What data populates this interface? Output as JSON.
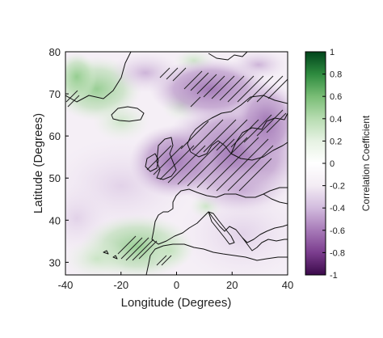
{
  "map": {
    "xlabel": "Longitude (Degrees)",
    "ylabel": "Latitude (Degrees)",
    "xlim": [
      -40,
      40
    ],
    "ylim": [
      27,
      80
    ],
    "xticks": [
      "-40",
      "-20",
      "0",
      "20",
      "40"
    ],
    "xtick_values": [
      -40,
      -20,
      0,
      20,
      40
    ],
    "yticks": [
      "30",
      "40",
      "50",
      "60",
      "70",
      "80"
    ],
    "ytick_values": [
      30,
      40,
      50,
      60,
      70,
      80
    ],
    "colorbar": {
      "label": "Correlation Coefficient",
      "range": [
        -1,
        1
      ],
      "ticks": [
        "1",
        "0.8",
        "0.6",
        "0.4",
        "0.2",
        "0",
        "-0.2",
        "-0.4",
        "-0.6",
        "-0.8",
        "-1"
      ],
      "tick_values": [
        1,
        0.8,
        0.6,
        0.4,
        0.2,
        0,
        -0.2,
        -0.4,
        -0.6,
        -0.8,
        -1
      ],
      "colors": [
        "#3b0a4a",
        "#7b3d8e",
        "#a77ab8",
        "#d2bbde",
        "#f3ecf4",
        "#ffffff",
        "#e6f2e3",
        "#b7dcb1",
        "#79bd75",
        "#2e8b3f",
        "#00441b"
      ]
    }
  }
}
